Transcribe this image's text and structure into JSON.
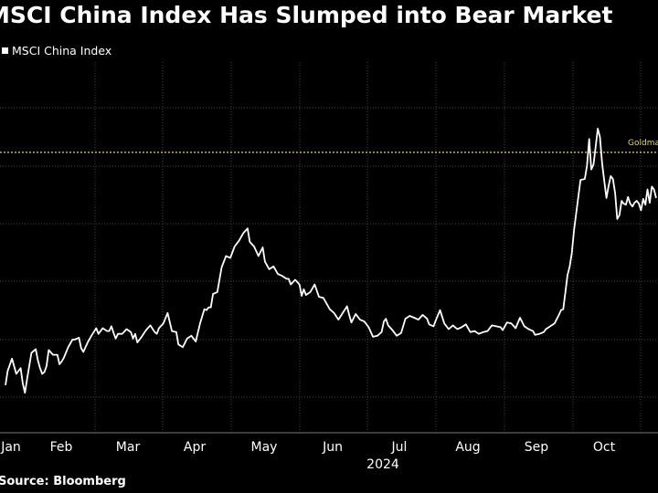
{
  "title": "MSCI China Index Has Slumped into Bear Market",
  "legend": {
    "label": "MSCI China Index",
    "color": "#ffffff"
  },
  "source": "Source: Bloomberg",
  "colors": {
    "background": "#000000",
    "line": "#ffffff",
    "grid": "#444444",
    "annotation": "#e8d36a"
  },
  "chart_data": {
    "type": "line",
    "title": "MSCI China Index Has Slumped into Bear Market",
    "xlabel": "2024",
    "ylabel": "",
    "x_ticks": [
      "Jan",
      "Feb",
      "Mar",
      "Apr",
      "May",
      "Jun",
      "Jul",
      "Aug",
      "Sep",
      "Oct"
    ],
    "grid": true,
    "legend_position": "top-left",
    "annotation": {
      "label": "Goldma",
      "y": 76.5,
      "style": "dotted",
      "color": "#e8d36a"
    },
    "ylim": [
      47,
      86
    ],
    "series": [
      {
        "name": "MSCI China Index",
        "values": [
          [
            0,
            52
          ],
          [
            1,
            53.5
          ],
          [
            3,
            54.8
          ],
          [
            5,
            53.2
          ],
          [
            7,
            53.8
          ],
          [
            8,
            52.2
          ],
          [
            9,
            51.2
          ],
          [
            10,
            52.7
          ],
          [
            12,
            55.4
          ],
          [
            14,
            55.8
          ],
          [
            15,
            54.6
          ],
          [
            16,
            53.8
          ],
          [
            17,
            53.2
          ],
          [
            18,
            53.4
          ],
          [
            19,
            54.0
          ],
          [
            20,
            55.7
          ],
          [
            22,
            55.2
          ],
          [
            24,
            55.2
          ],
          [
            25,
            54.2
          ],
          [
            26,
            54.5
          ],
          [
            27,
            54.9
          ],
          [
            29,
            56
          ],
          [
            31,
            56.8
          ],
          [
            32,
            56.8
          ],
          [
            34,
            57.0
          ],
          [
            35,
            55.9
          ],
          [
            36,
            55.5
          ],
          [
            38,
            56.5
          ],
          [
            40,
            57.3
          ],
          [
            42,
            58.0
          ],
          [
            43,
            57.4
          ],
          [
            45,
            58.0
          ],
          [
            47,
            57.7
          ],
          [
            48,
            57.7
          ],
          [
            49,
            58.2
          ],
          [
            50,
            57.5
          ],
          [
            51,
            56.9
          ],
          [
            52,
            57.4
          ],
          [
            54,
            57.4
          ],
          [
            56,
            57.9
          ],
          [
            58,
            57.6
          ],
          [
            59,
            56.9
          ],
          [
            60,
            57.4
          ],
          [
            61,
            56.5
          ],
          [
            63,
            57.1
          ],
          [
            65,
            57.8
          ],
          [
            67,
            58.3
          ],
          [
            69,
            57.6
          ],
          [
            70,
            57.4
          ],
          [
            71,
            58.0
          ],
          [
            73,
            58.5
          ],
          [
            75,
            59.6
          ],
          [
            77,
            57.7
          ],
          [
            79,
            57.6
          ],
          [
            80,
            56.3
          ],
          [
            82,
            56.0
          ],
          [
            84,
            56.9
          ],
          [
            86,
            57.2
          ],
          [
            88,
            56.6
          ],
          [
            90,
            58.5
          ],
          [
            92,
            60.0
          ],
          [
            93,
            59.9
          ],
          [
            94,
            60.2
          ],
          [
            95,
            60.2
          ],
          [
            96,
            61.6
          ],
          [
            98,
            61.8
          ],
          [
            100,
            64.4
          ],
          [
            102,
            65.6
          ],
          [
            104,
            65.4
          ],
          [
            106,
            66.6
          ],
          [
            108,
            67.2
          ],
          [
            110,
            68.0
          ],
          [
            112,
            68.5
          ],
          [
            113,
            67.1
          ],
          [
            115,
            66.6
          ],
          [
            117,
            65.6
          ],
          [
            119,
            66.5
          ],
          [
            120,
            65.0
          ],
          [
            122,
            64.2
          ],
          [
            124,
            64.5
          ],
          [
            126,
            63.7
          ],
          [
            128,
            63.5
          ],
          [
            130,
            63.2
          ],
          [
            131,
            63.2
          ],
          [
            132,
            62.6
          ],
          [
            134,
            63.1
          ],
          [
            136,
            62.6
          ],
          [
            137,
            61.4
          ],
          [
            138,
            62.1
          ],
          [
            139,
            61.5
          ],
          [
            141,
            61.8
          ],
          [
            143,
            62.6
          ],
          [
            145,
            61.3
          ],
          [
            147,
            61.2
          ],
          [
            149,
            60.4
          ],
          [
            150,
            60.0
          ],
          [
            152,
            59.6
          ],
          [
            154,
            58.9
          ],
          [
            156,
            59.6
          ],
          [
            158,
            60.3
          ],
          [
            159,
            59.4
          ],
          [
            160,
            58.6
          ],
          [
            162,
            59.5
          ],
          [
            164,
            58.9
          ],
          [
            166,
            58.7
          ],
          [
            168,
            58.1
          ],
          [
            170,
            57.1
          ],
          [
            172,
            57.2
          ],
          [
            174,
            57.6
          ],
          [
            175,
            58.7
          ],
          [
            176,
            59.0
          ],
          [
            177,
            58.3
          ],
          [
            179,
            57.8
          ],
          [
            181,
            57.2
          ],
          [
            183,
            57.5
          ],
          [
            185,
            59.0
          ],
          [
            187,
            59.3
          ],
          [
            189,
            59.1
          ],
          [
            191,
            58.9
          ],
          [
            193,
            59.4
          ],
          [
            195,
            59.0
          ],
          [
            196,
            58.4
          ],
          [
            198,
            58.2
          ],
          [
            199,
            58.8
          ],
          [
            201,
            59.9
          ],
          [
            203,
            58.5
          ],
          [
            205,
            57.9
          ],
          [
            207,
            58.3
          ],
          [
            209,
            57.9
          ],
          [
            211,
            58.1
          ],
          [
            213,
            58.4
          ],
          [
            215,
            57.6
          ],
          [
            217,
            57.7
          ],
          [
            219,
            57.4
          ],
          [
            221,
            57.6
          ],
          [
            223,
            57.7
          ],
          [
            225,
            58.3
          ],
          [
            227,
            58.2
          ],
          [
            229,
            58.1
          ],
          [
            230,
            57.8
          ],
          [
            232,
            58.6
          ],
          [
            234,
            58.5
          ],
          [
            236,
            58.0
          ],
          [
            238,
            59.1
          ],
          [
            240,
            58.2
          ],
          [
            242,
            57.9
          ],
          [
            244,
            57.7
          ],
          [
            245,
            57.3
          ],
          [
            247,
            57.4
          ],
          [
            249,
            57.6
          ],
          [
            250,
            57.9
          ],
          [
            252,
            58.2
          ],
          [
            254,
            58.5
          ],
          [
            256,
            59.4
          ],
          [
            257,
            59.9
          ],
          [
            258,
            60.0
          ],
          [
            259,
            61.8
          ],
          [
            260,
            63.6
          ],
          [
            261,
            64.5
          ],
          [
            262,
            65.9
          ],
          [
            263,
            68.3
          ],
          [
            264,
            70.1
          ],
          [
            265,
            71.8
          ],
          [
            266,
            73.6
          ],
          [
            268,
            73.7
          ],
          [
            269,
            75.1
          ],
          [
            270,
            77.9
          ],
          [
            271,
            74.7
          ],
          [
            272,
            75.2
          ],
          [
            273,
            77.1
          ],
          [
            274,
            79.0
          ],
          [
            275,
            78.1
          ],
          [
            276,
            75.3
          ],
          [
            277,
            73.5
          ],
          [
            278,
            71.7
          ],
          [
            279,
            73.0
          ],
          [
            280,
            74.0
          ],
          [
            281,
            73.7
          ],
          [
            282,
            72.2
          ],
          [
            283,
            69.5
          ],
          [
            284,
            69.9
          ],
          [
            285,
            71.4
          ],
          [
            286,
            71.1
          ],
          [
            287,
            71.0
          ],
          [
            288,
            71.8
          ],
          [
            289,
            71.1
          ],
          [
            290,
            70.8
          ],
          [
            291,
            71.2
          ],
          [
            292,
            71.4
          ],
          [
            293,
            71.1
          ],
          [
            294,
            70.4
          ],
          [
            295,
            71.6
          ],
          [
            296,
            71.0
          ],
          [
            297,
            72.6
          ],
          [
            298,
            71.2
          ],
          [
            299,
            72.9
          ],
          [
            300,
            72.6
          ],
          [
            301,
            71.7
          ]
        ]
      }
    ]
  }
}
